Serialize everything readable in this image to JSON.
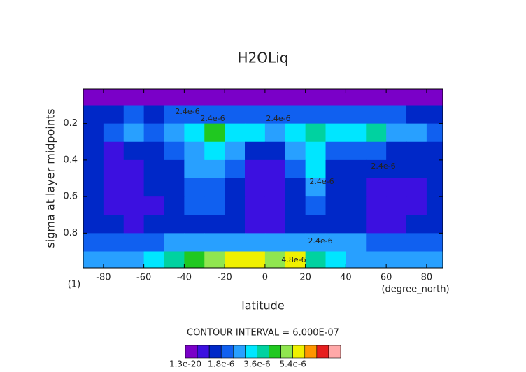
{
  "chart_data": {
    "type": "contour",
    "title": "H2OLiq",
    "x_label": "latitude",
    "y_label": "sigma at layer midpoints",
    "x_units": "(degree_north)",
    "y_units": "(1)",
    "footnote": "CONTOUR INTERVAL = 6.000E-07",
    "xlim": [
      -90,
      88
    ],
    "ylim": [
      0.01,
      0.99
    ],
    "y_reversed": true,
    "xticks": [
      -80,
      -60,
      -40,
      -20,
      0,
      20,
      40,
      60,
      80
    ],
    "yticks": [
      0.2,
      0.4,
      0.6,
      0.8
    ],
    "x": [
      -85,
      -75,
      -65,
      -55,
      -45,
      -35,
      -25,
      -15,
      -5,
      5,
      15,
      25,
      35,
      45,
      55,
      65,
      75,
      85
    ],
    "y": [
      0.05,
      0.15,
      0.25,
      0.35,
      0.45,
      0.55,
      0.65,
      0.75,
      0.85,
      0.95
    ],
    "z": [
      [
        2e-07,
        2e-07,
        2e-07,
        2e-07,
        2e-07,
        2e-07,
        2e-07,
        2e-07,
        2e-07,
        2e-07,
        2e-07,
        2e-07,
        2e-07,
        2e-07,
        2e-07,
        2e-07,
        2e-07,
        2e-07
      ],
      [
        1.5e-06,
        1.5e-06,
        1.8e-06,
        1.5e-06,
        1.8e-06,
        2e-06,
        2e-06,
        2e-06,
        1.8e-06,
        1.8e-06,
        2e-06,
        2e-06,
        1.8e-06,
        1.8e-06,
        2e-06,
        1.8e-06,
        1.5e-06,
        1.2e-06
      ],
      [
        1.5e-06,
        1.8e-06,
        2.4e-06,
        2e-06,
        2.4e-06,
        3e-06,
        4.2e-06,
        3.5e-06,
        3e-06,
        2.4e-06,
        3e-06,
        4e-06,
        3e-06,
        3e-06,
        3.8e-06,
        2.4e-06,
        2.4e-06,
        1.8e-06
      ],
      [
        1.2e-06,
        1e-06,
        1.4e-06,
        1.5e-06,
        1.8e-06,
        2.4e-06,
        3e-06,
        2.4e-06,
        1.5e-06,
        1.5e-06,
        2.4e-06,
        3.2e-06,
        1.8e-06,
        1.8e-06,
        1.8e-06,
        1.5e-06,
        1.2e-06,
        1.2e-06
      ],
      [
        1.2e-06,
        8e-07,
        8e-07,
        1.2e-06,
        1.5e-06,
        2.4e-06,
        2.6e-06,
        1.8e-06,
        8e-07,
        8e-07,
        1.8e-06,
        3e-06,
        1.5e-06,
        1.2e-06,
        1.2e-06,
        1.2e-06,
        1.2e-06,
        1.2e-06
      ],
      [
        1.2e-06,
        8e-07,
        8e-07,
        1.2e-06,
        1.5e-06,
        2e-06,
        2.2e-06,
        1.5e-06,
        8e-07,
        8e-07,
        1.5e-06,
        2.6e-06,
        1.5e-06,
        1.2e-06,
        8e-07,
        8e-07,
        1e-06,
        1.5e-06
      ],
      [
        1.2e-06,
        8e-07,
        8e-07,
        1e-06,
        1.5e-06,
        1.8e-06,
        1.8e-06,
        1.5e-06,
        8e-07,
        8e-07,
        1.5e-06,
        1.8e-06,
        1.5e-06,
        1.2e-06,
        8e-07,
        8e-07,
        8e-07,
        1.5e-06
      ],
      [
        1.5e-06,
        1.2e-06,
        8e-07,
        1.2e-06,
        1.5e-06,
        1.5e-06,
        1.5e-06,
        1.2e-06,
        8e-07,
        1e-06,
        1.2e-06,
        1.5e-06,
        1.2e-06,
        1.2e-06,
        1e-06,
        1e-06,
        1.2e-06,
        1.5e-06
      ],
      [
        1.8e-06,
        1.8e-06,
        1.8e-06,
        2e-06,
        2.4e-06,
        2.4e-06,
        2.4e-06,
        2.4e-06,
        2.4e-06,
        2.4e-06,
        2.4e-06,
        2.4e-06,
        2.4e-06,
        2.4e-06,
        2e-06,
        1.8e-06,
        1.8e-06,
        1.8e-06
      ],
      [
        2.4e-06,
        2.4e-06,
        2.4e-06,
        3e-06,
        3.6e-06,
        4.2e-06,
        5e-06,
        5.4e-06,
        5.4e-06,
        5e-06,
        5.4e-06,
        3.6e-06,
        3e-06,
        2.4e-06,
        2.4e-06,
        2.4e-06,
        2.4e-06,
        2.4e-06
      ]
    ],
    "levels": [
      0,
      6e-07,
      1.2e-06,
      1.8e-06,
      2.4e-06,
      3e-06,
      3.6e-06,
      4.2e-06,
      4.8e-06,
      5.4e-06,
      6e-06,
      6.6e-06,
      7.2e-06
    ],
    "colors": [
      "#7a00c8",
      "#3c10e0",
      "#0028c8",
      "#1060f0",
      "#28a0ff",
      "#00e6ff",
      "#00d2a0",
      "#20c820",
      "#90e650",
      "#f0f000",
      "#ff9600",
      "#e61e1e",
      "#ffa8a8"
    ],
    "colorbar_ticks": [
      1.3e-20,
      {
        "value": 1.8e-06,
        "label": "1.8e-6"
      },
      {
        "value": 3.6e-06,
        "label": "3.6e-6"
      },
      {
        "value": 5.4e-06,
        "label": "5.4e-6"
      }
    ],
    "contour_labels": [
      "2.4e-6",
      "2.4e-6",
      "2.4e-6",
      "2.4e-6",
      "2.4e-6",
      "2.4e-6",
      "4.8e-6"
    ]
  }
}
